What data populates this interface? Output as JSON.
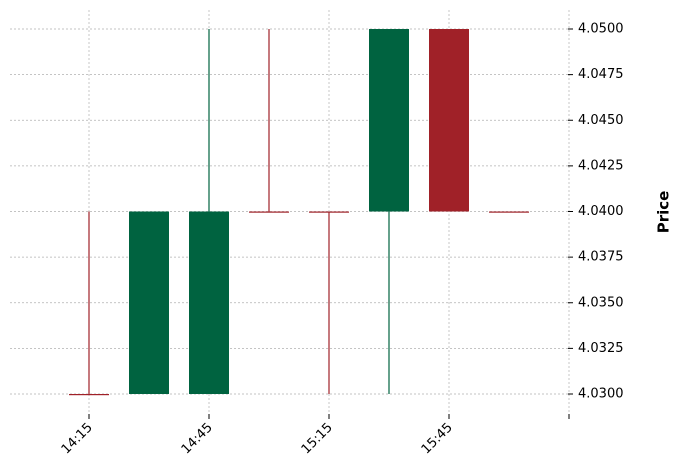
{
  "chart_data": {
    "type": "candlestick",
    "title": "",
    "xlabel": "",
    "ylabel": "Price",
    "ylim": [
      4.029,
      4.051
    ],
    "y_ticks": [
      4.03,
      4.0325,
      4.035,
      4.0375,
      4.04,
      4.0425,
      4.045,
      4.0475,
      4.05
    ],
    "y_tick_labels": [
      "4.0300",
      "4.0325",
      "4.0350",
      "4.0375",
      "4.0400",
      "4.0425",
      "4.0450",
      "4.0475",
      "4.0500"
    ],
    "y_axis_side": "right",
    "grid": true,
    "x_tick_labels": [
      "14:15",
      "14:45",
      "15:15",
      "15:45",
      ""
    ],
    "candles": [
      {
        "time": "14:15",
        "open": 4.03,
        "high": 4.04,
        "low": 4.03,
        "close": 4.03
      },
      {
        "time": "14:30",
        "open": 4.03,
        "high": 4.04,
        "low": 4.03,
        "close": 4.04
      },
      {
        "time": "14:45",
        "open": 4.03,
        "high": 4.05,
        "low": 4.03,
        "close": 4.04
      },
      {
        "time": "15:00",
        "open": 4.04,
        "high": 4.05,
        "low": 4.04,
        "close": 4.04
      },
      {
        "time": "15:15",
        "open": 4.04,
        "high": 4.04,
        "low": 4.03,
        "close": 4.04
      },
      {
        "time": "15:30",
        "open": 4.04,
        "high": 4.05,
        "low": 4.03,
        "close": 4.05
      },
      {
        "time": "15:45",
        "open": 4.05,
        "high": 4.05,
        "low": 4.04,
        "close": 4.04
      },
      {
        "time": "16:00",
        "open": 4.04,
        "high": 4.04,
        "low": 4.04,
        "close": 4.04
      }
    ],
    "colors": {
      "up": "#006340",
      "down": "#a02128",
      "grid": "#b0b0b0"
    }
  }
}
